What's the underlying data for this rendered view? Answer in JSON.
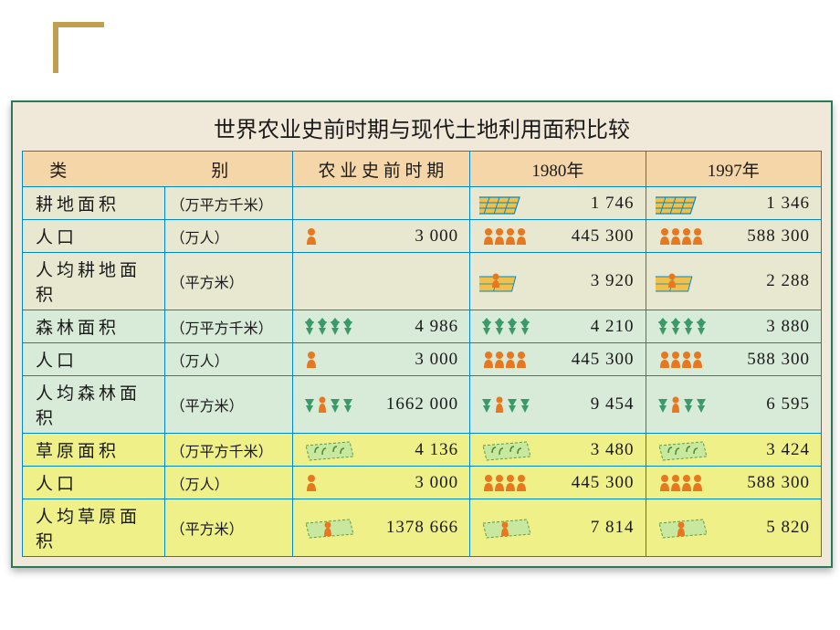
{
  "title": "世界农业史前时期与现代土地利用面积比较",
  "colors": {
    "border": "#0088cc",
    "outer_border": "#2a7a5a",
    "table_bg": "#f0e8d8",
    "header_bg": "#f5d6a8",
    "corner": "#c0a050",
    "bg_cultivated": "#e8e8d0",
    "bg_forest": "#d8ead8",
    "bg_grassland": "#f0f088",
    "icon_field": "#e8a030",
    "icon_field_grid": "#0088cc",
    "icon_people": "#e87820",
    "icon_forest": "#3a9a6a",
    "icon_grass": "#88c070",
    "icon_person_field": "#d87820"
  },
  "headers": {
    "category": "类　　别",
    "col1": "农 业 史 前 时 期",
    "col2": "1980年",
    "col3": "1997年"
  },
  "rows": [
    {
      "label": "耕地面积",
      "unit": "（万平方千米）",
      "bg": "bg-cultivated",
      "icon": "field",
      "v1": "",
      "i1": false,
      "v2": "1 746",
      "i2": true,
      "v3": "1 346",
      "i3": true
    },
    {
      "label": "人口",
      "unit": "（万人）",
      "bg": "bg-cultivated",
      "icon": "people",
      "v1": "3 000",
      "i1": true,
      "v2": "445 300",
      "i2": true,
      "v3": "588 300",
      "i3": true
    },
    {
      "label": "人均耕地面积",
      "unit": "（平方米）",
      "bg": "bg-cultivated",
      "icon": "person-field",
      "v1": "",
      "i1": false,
      "v2": "3 920",
      "i2": true,
      "v3": "2 288",
      "i3": true
    },
    {
      "label": "森林面积",
      "unit": "（万平方千米）",
      "bg": "bg-forest",
      "icon": "forest",
      "v1": "4 986",
      "i1": true,
      "v2": "4 210",
      "i2": true,
      "v3": "3 880",
      "i3": true
    },
    {
      "label": "人口",
      "unit": "（万人）",
      "bg": "bg-forest",
      "icon": "people",
      "v1": "3 000",
      "i1": true,
      "v2": "445 300",
      "i2": true,
      "v3": "588 300",
      "i3": true
    },
    {
      "label": "人均森林面积",
      "unit": "（平方米）",
      "bg": "bg-forest",
      "icon": "person-forest",
      "v1": "1662 000",
      "i1": true,
      "v2": "9 454",
      "i2": true,
      "v3": "6 595",
      "i3": true
    },
    {
      "label": "草原面积",
      "unit": "（万平方千米）",
      "bg": "bg-grassland",
      "icon": "grass",
      "v1": "4 136",
      "i1": true,
      "v2": "3 480",
      "i2": true,
      "v3": "3 424",
      "i3": true
    },
    {
      "label": "人口",
      "unit": "（万人）",
      "bg": "bg-grassland",
      "icon": "people",
      "v1": "3 000",
      "i1": true,
      "v2": "445 300",
      "i2": true,
      "v3": "588 300",
      "i3": true
    },
    {
      "label": "人均草原面积",
      "unit": "（平方米）",
      "bg": "bg-grassland",
      "icon": "person-grass",
      "v1": "1378 666",
      "i1": true,
      "v2": "7 814",
      "i2": true,
      "v3": "5 820",
      "i3": true
    }
  ]
}
